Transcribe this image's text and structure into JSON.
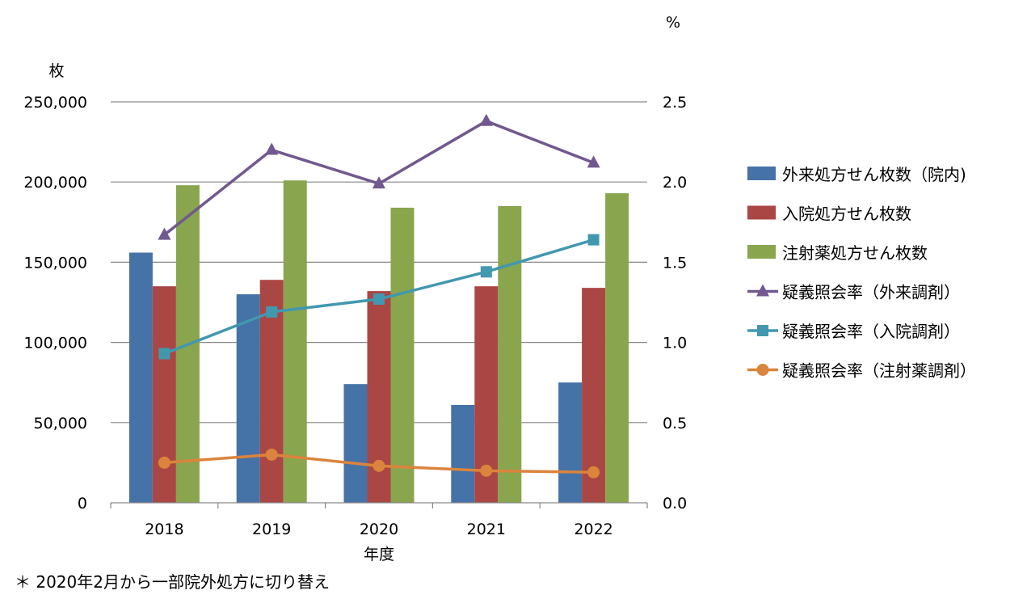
{
  "chart_data": {
    "type": "bar",
    "categories": [
      "2018",
      "2019",
      "2020",
      "2021",
      "2022"
    ],
    "xlabel": "年度",
    "left_axis": {
      "unit_label": "枚",
      "ylim": [
        0,
        250000
      ],
      "ticks": [
        0,
        50000,
        100000,
        150000,
        200000,
        250000
      ],
      "tick_labels": [
        "0",
        "50,000",
        "100,000",
        "150,000",
        "200,000",
        "250,000"
      ]
    },
    "right_axis": {
      "unit_label": "%",
      "ylim": [
        0,
        2.5
      ],
      "ticks": [
        0,
        0.5,
        1.0,
        1.5,
        2.0,
        2.5
      ],
      "tick_labels": [
        "0.0",
        "0.5",
        "1.0",
        "1.5",
        "2.0",
        "2.5"
      ]
    },
    "grid": true,
    "legend_position": "right",
    "bar_series": [
      {
        "name": "外来処方せん枚数（院内)",
        "color": "#4572A7",
        "values": [
          156000,
          130000,
          74000,
          61000,
          75000
        ]
      },
      {
        "name": "入院処方せん枚数",
        "color": "#AA4643",
        "values": [
          135000,
          139000,
          132000,
          135000,
          134000
        ]
      },
      {
        "name": "注射薬処方せん枚数",
        "color": "#89A54E",
        "values": [
          198000,
          201000,
          184000,
          185000,
          193000
        ]
      }
    ],
    "line_series": [
      {
        "name": "疑義照会率（外来調剤）",
        "color": "#71588F",
        "marker": "triangle",
        "values": [
          1.67,
          2.2,
          1.99,
          2.38,
          2.12
        ]
      },
      {
        "name": "疑義照会率（入院調剤）",
        "color": "#4198AF",
        "marker": "square",
        "values": [
          0.93,
          1.19,
          1.27,
          1.44,
          1.64
        ]
      },
      {
        "name": "疑義照会率（注射薬調剤）",
        "color": "#DB843D",
        "marker": "circle",
        "values": [
          0.25,
          0.3,
          0.23,
          0.2,
          0.19
        ]
      }
    ]
  },
  "footnote": "＊ 2020年2月から一部院外処方に切り替え"
}
